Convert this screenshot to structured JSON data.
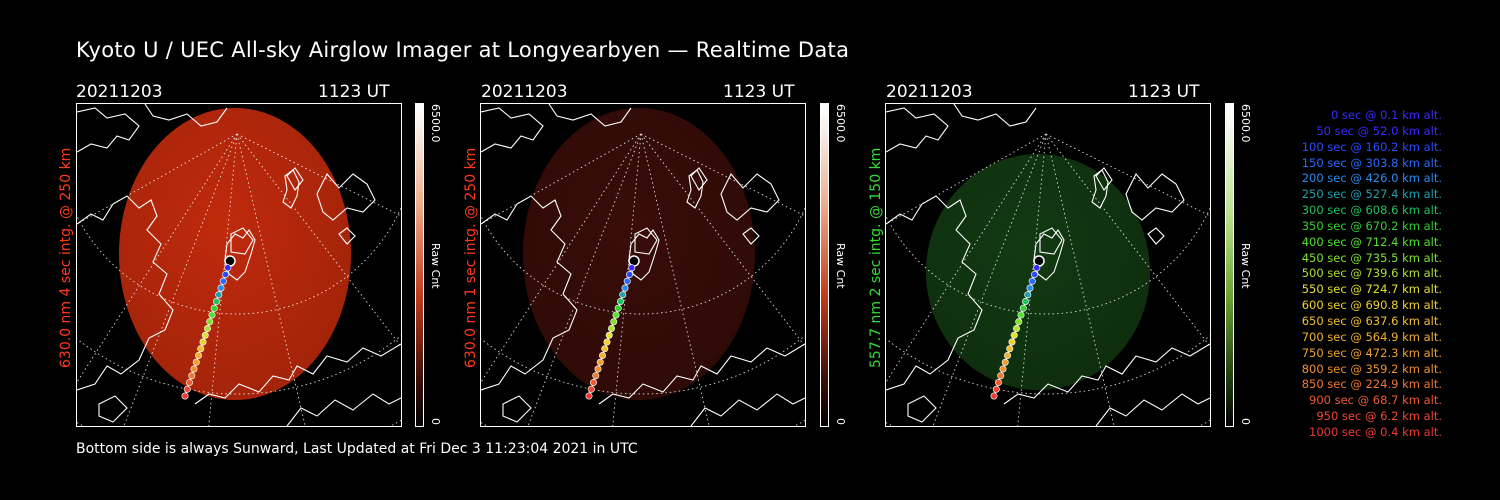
{
  "title": "Kyoto U / UEC All-sky Airglow Imager at Longyearbyen — Realtime Data",
  "footer": "Bottom side is always Sunward, Last Updated at Fri Dec  3 11:23:04 2021 in UTC",
  "panels": [
    {
      "date": "20211203",
      "time": "1123 UT",
      "side_label": "630.0 nm 4 sec intg. @ 250 km",
      "label_color": "#ff3a1a",
      "cbar_max": "6500.0",
      "cbar_min": "0",
      "cbar_unit": "Raw Cnt",
      "glow_color": "#c02a0c",
      "glow_intensity": "strong"
    },
    {
      "date": "20211203",
      "time": "1123 UT",
      "side_label": "630.0 nm 1 sec intg. @ 250 km",
      "label_color": "#ff3a1a",
      "cbar_max": "6500.0",
      "cbar_min": "0",
      "cbar_unit": "Raw Cnt",
      "glow_color": "#3a0d08",
      "glow_intensity": "dim"
    },
    {
      "date": "20211203",
      "time": "1123 UT",
      "side_label": "557.7 nm 2 sec intg. @ 150 km",
      "label_color": "#33dd33",
      "cbar_max": "6500.0",
      "cbar_min": "0",
      "cbar_unit": "Raw Cnt",
      "glow_color": "#123a12",
      "glow_intensity": "dim"
    }
  ],
  "legend": [
    {
      "text": "0 sec @    0.1 km alt.",
      "color": "#3a2aff"
    },
    {
      "text": "50 sec @   52.0 km alt.",
      "color": "#3a2aff"
    },
    {
      "text": "100 sec @  160.2 km alt.",
      "color": "#2a4aff"
    },
    {
      "text": "150 sec @  303.8 km alt.",
      "color": "#2a6aff"
    },
    {
      "text": "200 sec @  426.0 km alt.",
      "color": "#2a8aee"
    },
    {
      "text": "250 sec @  527.4 km alt.",
      "color": "#20a0b0"
    },
    {
      "text": "300 sec @  608.6 km alt.",
      "color": "#20c060"
    },
    {
      "text": "350 sec @  670.2 km alt.",
      "color": "#30d030"
    },
    {
      "text": "400 sec @  712.4 km alt.",
      "color": "#50e030"
    },
    {
      "text": "450 sec @  735.5 km alt.",
      "color": "#80e030"
    },
    {
      "text": "500 sec @  739.6 km alt.",
      "color": "#b0e030"
    },
    {
      "text": "550 sec @  724.7 km alt.",
      "color": "#e0e030"
    },
    {
      "text": "600 sec @  690.8 km alt.",
      "color": "#f0d030"
    },
    {
      "text": "650 sec @  637.6 km alt.",
      "color": "#f0c030"
    },
    {
      "text": "700 sec @  564.9 km alt.",
      "color": "#f0b030"
    },
    {
      "text": "750 sec @  472.3 km alt.",
      "color": "#f0a030"
    },
    {
      "text": "800 sec @  359.2 km alt.",
      "color": "#f09030"
    },
    {
      "text": "850 sec @  224.9 km alt.",
      "color": "#f07830"
    },
    {
      "text": "900 sec @   68.7 km alt.",
      "color": "#f05a30"
    },
    {
      "text": "950 sec @    6.2 km alt.",
      "color": "#f04830"
    },
    {
      "text": "1000 sec @    0.4 km alt.",
      "color": "#f03a30"
    }
  ],
  "trajectory_colors": [
    "#ffffff",
    "#3a2aff",
    "#2a4aff",
    "#2a6aff",
    "#2a8aee",
    "#20a0b0",
    "#20c060",
    "#30d030",
    "#50e030",
    "#80e030",
    "#b0e030",
    "#e0e030",
    "#f0d030",
    "#f0c030",
    "#f0b030",
    "#f0a030",
    "#f09030",
    "#f07830",
    "#f05a30",
    "#f04830",
    "#f03a30"
  ]
}
